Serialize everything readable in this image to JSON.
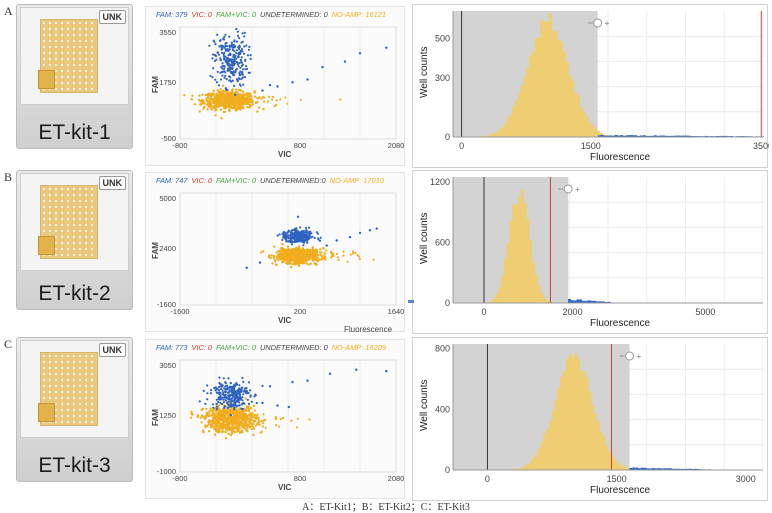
{
  "caption": "A：ET-Kit1；B：ET-Kit2；C：ET-Kit3",
  "colors": {
    "fam": "#2f63c0",
    "vic": "#e23a2a",
    "fam_vic": "#45a83c",
    "undetermined": "#444444",
    "no_amp": "#f0ad1e",
    "histogram": "#efcd72",
    "shade": "#d3d3d3",
    "threshold": "#c2443a"
  },
  "panels": [
    {
      "letter": "A",
      "kit_label": "ET-kit-1",
      "badge": "UNK",
      "scatter": {
        "legend": {
          "fam": "FAM: 379",
          "vic": "VIC: 0",
          "fam_vic": "FAM+VIC: 0",
          "undetermined": "UNDETERMINED: 0",
          "no_amp": "NO-AMP: 16121"
        },
        "x_label": "VIC",
        "y_label": "FAM",
        "x_ticks": [
          "-800",
          "800",
          "2080"
        ],
        "y_ticks": [
          "3550",
          "1750",
          "-500"
        ],
        "xlim": [
          -800,
          2080
        ],
        "ylim": [
          -500,
          3550
        ],
        "noamp_center": [
          -150,
          900
        ],
        "noamp_spread": [
          170,
          160
        ],
        "fam_center": [
          -120,
          2350
        ],
        "fam_spread": [
          110,
          480
        ],
        "outliers": [
          [
            400,
            1450
          ],
          [
            700,
            1550
          ],
          [
            900,
            1650
          ],
          [
            1100,
            2100
          ],
          [
            1400,
            2300
          ],
          [
            1600,
            2600
          ],
          [
            1950,
            2800
          ],
          [
            300,
            1250
          ],
          [
            500,
            1400
          ]
        ]
      },
      "histogram": {
        "y_label": "Well counts",
        "x_label": "Fluorescence",
        "x_ticks": [
          "0",
          "1500",
          "3500"
        ],
        "y_ticks": [
          "500",
          "300",
          "0"
        ],
        "xlim": [
          -100,
          3500
        ],
        "ylim": [
          0,
          640
        ],
        "shade_range": [
          -100,
          1580
        ],
        "dark_line": 0,
        "threshold_line": 3480,
        "peak_center": 1000,
        "peak_sd": 240,
        "peak_height": 610,
        "tail_range": [
          1580,
          3500
        ],
        "tail_height": 8
      }
    },
    {
      "letter": "B",
      "kit_label": "ET-kit-2",
      "badge": "UNK",
      "scatter": {
        "legend": {
          "fam": "FAM: 747",
          "vic": "VIC: 0",
          "fam_vic": "FAM+VIC: 0",
          "undetermined": "UNDETERMINED:0",
          "no_amp": "NO-AMP: 17010"
        },
        "x_label": "VIC",
        "y_label": "FAM",
        "x_ticks": [
          "-1600",
          "200",
          "1640"
        ],
        "y_ticks": [
          "5000",
          "2400",
          "-1600"
        ],
        "xlim": [
          -1600,
          1640
        ],
        "ylim": [
          -1600,
          5000
        ],
        "noamp_center": [
          150,
          1300
        ],
        "noamp_spread": [
          160,
          220
        ],
        "fam_center": [
          170,
          2450
        ],
        "fam_spread": [
          120,
          200
        ],
        "outliers": [
          [
            750,
            2200
          ],
          [
            950,
            2400
          ],
          [
            1100,
            2650
          ],
          [
            1250,
            2800
          ],
          [
            1350,
            2900
          ],
          [
            -400,
            900
          ],
          [
            -600,
            600
          ],
          [
            600,
            1900
          ],
          [
            170,
            3600
          ]
        ],
        "overflow_label": "Fluorescence"
      },
      "histogram": {
        "y_label": "Well counts",
        "x_label": "Fluorescence",
        "x_ticks": [
          "0",
          "2000",
          "5000"
        ],
        "y_ticks": [
          "1200",
          "600",
          "0"
        ],
        "xlim": [
          -700,
          6300
        ],
        "ylim": [
          0,
          1250
        ],
        "shade_range": [
          -700,
          1900
        ],
        "dark_line": 0,
        "threshold_line": 1500,
        "peak_center": 800,
        "peak_sd": 230,
        "peak_height": 1120,
        "tail_range": [
          1900,
          2800
        ],
        "tail_height": 30
      }
    },
    {
      "letter": "C",
      "kit_label": "ET-kit-3",
      "badge": "UNK",
      "scatter": {
        "legend": {
          "fam": "FAM: 773",
          "vic": "VIC: 0",
          "fam_vic": "FAM+VIC: 0",
          "undetermined": "UNDETERMINED: 0",
          "no_amp": "NO-AMP: 16209"
        },
        "x_label": "VIC",
        "y_label": "FAM",
        "x_ticks": [
          "-800",
          "800",
          "2080"
        ],
        "y_ticks": [
          "3050",
          "1250",
          "-1000"
        ],
        "xlim": [
          -800,
          2080
        ],
        "ylim": [
          -1000,
          3050
        ],
        "noamp_center": [
          -130,
          900
        ],
        "noamp_spread": [
          170,
          230
        ],
        "fam_center": [
          -130,
          1800
        ],
        "fam_spread": [
          130,
          260
        ],
        "outliers": [
          [
            400,
            2100
          ],
          [
            700,
            2250
          ],
          [
            900,
            2300
          ],
          [
            1200,
            2550
          ],
          [
            1550,
            2700
          ],
          [
            1950,
            2650
          ],
          [
            300,
            1500
          ],
          [
            500,
            1400
          ],
          [
            650,
            1350
          ]
        ]
      },
      "histogram": {
        "y_label": "Well counts",
        "x_label": "Fluorescence",
        "x_ticks": [
          "0",
          "1500",
          "3000"
        ],
        "y_ticks": [
          "800",
          "400",
          "0"
        ],
        "xlim": [
          -400,
          3200
        ],
        "ylim": [
          0,
          830
        ],
        "shade_range": [
          -400,
          1650
        ],
        "dark_line": 0,
        "threshold_line": 1440,
        "peak_center": 1000,
        "peak_sd": 220,
        "peak_height": 760,
        "tail_range": [
          1650,
          2600
        ],
        "tail_height": 12
      }
    }
  ]
}
